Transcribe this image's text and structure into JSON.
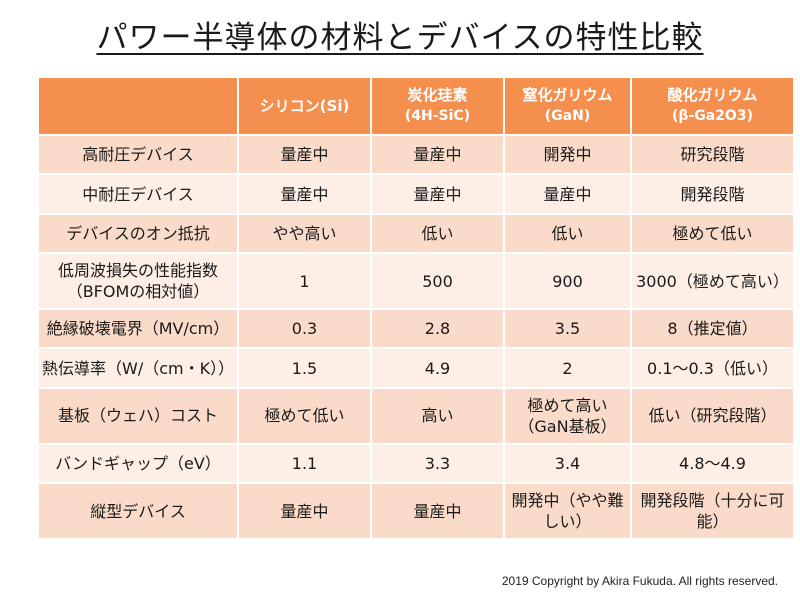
{
  "title": "パワー半導体の材料とデバイスの特性比較",
  "header": {
    "corner": "",
    "columns": [
      {
        "name": "シリコン(Si)",
        "sub": ""
      },
      {
        "name": "炭化珪素",
        "sub": "(4H-SiC)"
      },
      {
        "name": "窒化ガリウム",
        "sub": "(GaN)"
      },
      {
        "name": "酸化ガリウム",
        "sub": "(β-Ga2O3)"
      }
    ]
  },
  "rows": [
    {
      "label": "高耐圧デバイス",
      "values": [
        "量産中",
        "量産中",
        "開発中",
        "研究段階"
      ]
    },
    {
      "label": "中耐圧デバイス",
      "values": [
        "量産中",
        "量産中",
        "量産中",
        "開発段階"
      ]
    },
    {
      "label": "デバイスのオン抵抗",
      "values": [
        "やや高い",
        "低い",
        "低い",
        "極めて低い"
      ]
    },
    {
      "label": "低周波損失の性能指数（BFOMの相対値）",
      "values": [
        "1",
        "500",
        "900",
        "3000（極めて高い）"
      ]
    },
    {
      "label": "絶縁破壊電界（MV/cm）",
      "values": [
        "0.3",
        "2.8",
        "3.5",
        "8（推定値）"
      ]
    },
    {
      "label": "熱伝導率（W/（cm・K））",
      "values": [
        "1.5",
        "4.9",
        "2",
        "0.1〜0.3（低い）"
      ]
    },
    {
      "label": "基板（ウェハ）コスト",
      "values": [
        "極めて低い",
        "高い",
        "極めて高い（GaN基板）",
        "低い（研究段階）"
      ]
    },
    {
      "label": "バンドギャップ（eV）",
      "values": [
        "1.1",
        "3.3",
        "3.4",
        "4.8〜4.9"
      ]
    },
    {
      "label": "縦型デバイス",
      "values": [
        "量産中",
        "量産中",
        "開発中（やや難しい）",
        "開発段階（十分に可能）"
      ]
    }
  ],
  "footer": {
    "copyright": "2019 Copyright by Akira Fukuda. All rights reserved."
  },
  "colors": {
    "header_bg": "#f58f4e",
    "row_dark": "#fadbc9",
    "row_light": "#fdeee6"
  }
}
